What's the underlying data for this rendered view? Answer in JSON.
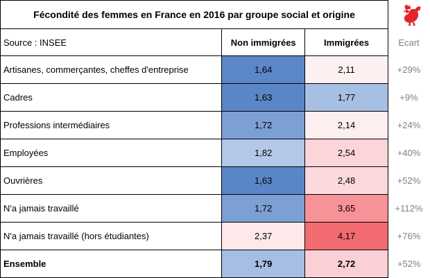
{
  "title": "Fécondité des femmes en France en 2016 par groupe social et origine",
  "header": {
    "source": "Source : INSEE",
    "col_non_immigrees": "Non immigrées",
    "col_immigrees": "Immigrées",
    "col_ecart": "Ecart"
  },
  "rows": [
    {
      "label": "Artisanes, commerçantes, cheffes d'entreprise",
      "non_immigrees": "1,64",
      "immigrees": "2,11",
      "ecart": "+29%",
      "bg_non": "#5b87c8",
      "bg_imm": "#fdf0f1"
    },
    {
      "label": "Cadres",
      "non_immigrees": "1,63",
      "immigrees": "1,77",
      "ecart": "+9%",
      "bg_non": "#5a86c7",
      "bg_imm": "#a7bfe2"
    },
    {
      "label": "Professions intermédiaires",
      "non_immigrees": "1,72",
      "immigrees": "2,14",
      "ecart": "+24%",
      "bg_non": "#7c9fd4",
      "bg_imm": "#fdeef0"
    },
    {
      "label": "Employées",
      "non_immigrees": "1,82",
      "immigrees": "2,54",
      "ecart": "+40%",
      "bg_non": "#b3c8e8",
      "bg_imm": "#fbd5d8"
    },
    {
      "label": "Ouvrières",
      "non_immigrees": "1,63",
      "immigrees": "2,48",
      "ecart": "+52%",
      "bg_non": "#5a86c7",
      "bg_imm": "#fbd9dc"
    },
    {
      "label": "N'a jamais travaillé",
      "non_immigrees": "1,72",
      "immigrees": "3,65",
      "ecart": "+112%",
      "bg_non": "#7c9fd4",
      "bg_imm": "#f79398"
    },
    {
      "label": "N'a jamais travaillé (hors étudiantes)",
      "non_immigrees": "2,37",
      "immigrees": "4,17",
      "ecart": "+76%",
      "bg_non": "#fde9eb",
      "bg_imm": "#f26b71"
    }
  ],
  "total": {
    "label": "Ensemble",
    "non_immigrees": "1,79",
    "immigrees": "2,72",
    "ecart": "+52%",
    "bg_non": "#a6bee3",
    "bg_imm": "#fbd0d4"
  },
  "icon": "rooster-icon",
  "rooster_color": "#e2262b"
}
